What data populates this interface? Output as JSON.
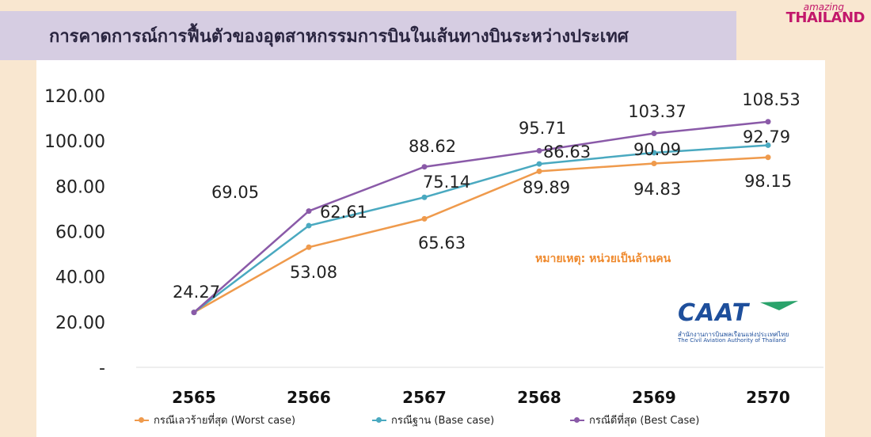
{
  "title": "การคาดการณ์การฟื้นตัวของอุตสาหกรรมการบินในเส้นทางบินระหว่างประเทศ",
  "logo": {
    "top": "amazing",
    "main": "THAILAND"
  },
  "note": "หมายเหตุ: หน่วยเป็นล้านคน",
  "caat": {
    "name": "CAAT",
    "thai": "สำนักงานการบินพลเรือนแห่งประเทศไทย",
    "english": "The Civil Aviation Authority of Thailand"
  },
  "colors": {
    "worst": "#ef9a4c",
    "base": "#4aa9c0",
    "best": "#8a5aa8"
  },
  "chart_data": {
    "type": "line",
    "categories": [
      "2565",
      "2566",
      "2567",
      "2568",
      "2569",
      "2570"
    ],
    "ytick_labels": [
      "-",
      "20.00",
      "40.00",
      "60.00",
      "80.00",
      "100.00",
      "120.00"
    ],
    "ylim": [
      0,
      120
    ],
    "grid": false,
    "legend_position": "bottom",
    "series": [
      {
        "name": "กรณีเลวร้ายที่สุด (Worst case)",
        "key": "worst",
        "values": [
          24.27,
          53.08,
          65.63,
          86.63,
          90.09,
          92.79
        ]
      },
      {
        "name": "กรณีฐาน (Base case)",
        "key": "base",
        "values": [
          24.27,
          62.61,
          75.14,
          89.89,
          94.83,
          98.15
        ]
      },
      {
        "name": "กรณีดีที่สุด (Best Case)",
        "key": "best",
        "values": [
          24.27,
          69.05,
          88.62,
          95.71,
          103.37,
          108.53
        ]
      }
    ],
    "data_labels": [
      {
        "text": "24.27"
      },
      {
        "text": "69.05"
      },
      {
        "text": "62.61"
      },
      {
        "text": "53.08"
      },
      {
        "text": "88.62"
      },
      {
        "text": "75.14"
      },
      {
        "text": "65.63"
      },
      {
        "text": "95.71"
      },
      {
        "text": "86.63"
      },
      {
        "text": "89.89"
      },
      {
        "text": "103.37"
      },
      {
        "text": "90.09"
      },
      {
        "text": "94.83"
      },
      {
        "text": "108.53"
      },
      {
        "text": "92.79"
      },
      {
        "text": "98.15"
      }
    ]
  }
}
